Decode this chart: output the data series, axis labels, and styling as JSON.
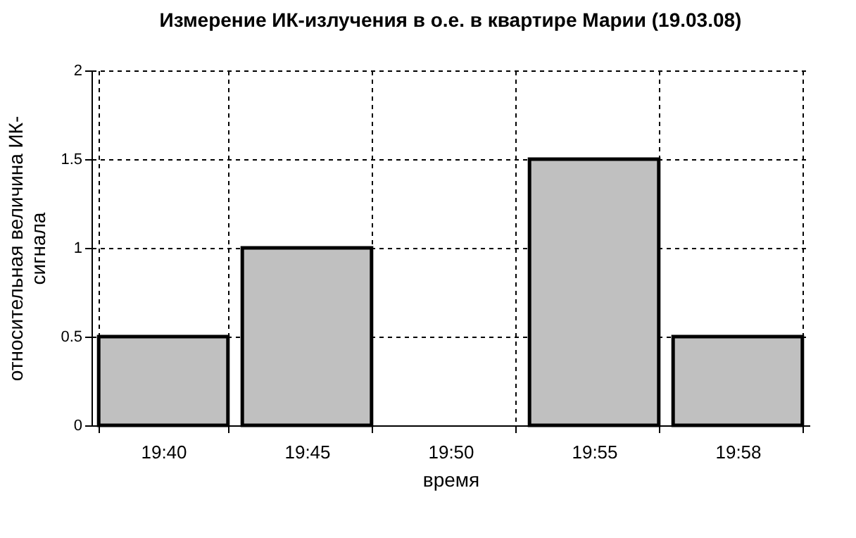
{
  "chart_data": {
    "type": "bar",
    "title": "Измерение ИК-излучения в о.е. в квартире Марии (19.03.08)",
    "xlabel": "время",
    "ylabel": "относительная величина ИК-сигнала",
    "categories": [
      "19:40",
      "19:45",
      "19:50",
      "19:55",
      "19:58"
    ],
    "values": [
      0.5,
      1,
      0,
      1.5,
      0.5
    ],
    "color": "#c0c0c0",
    "ylim": [
      0,
      2
    ],
    "yticks": [
      0,
      0.5,
      1,
      1.5,
      2
    ],
    "grid": true
  }
}
